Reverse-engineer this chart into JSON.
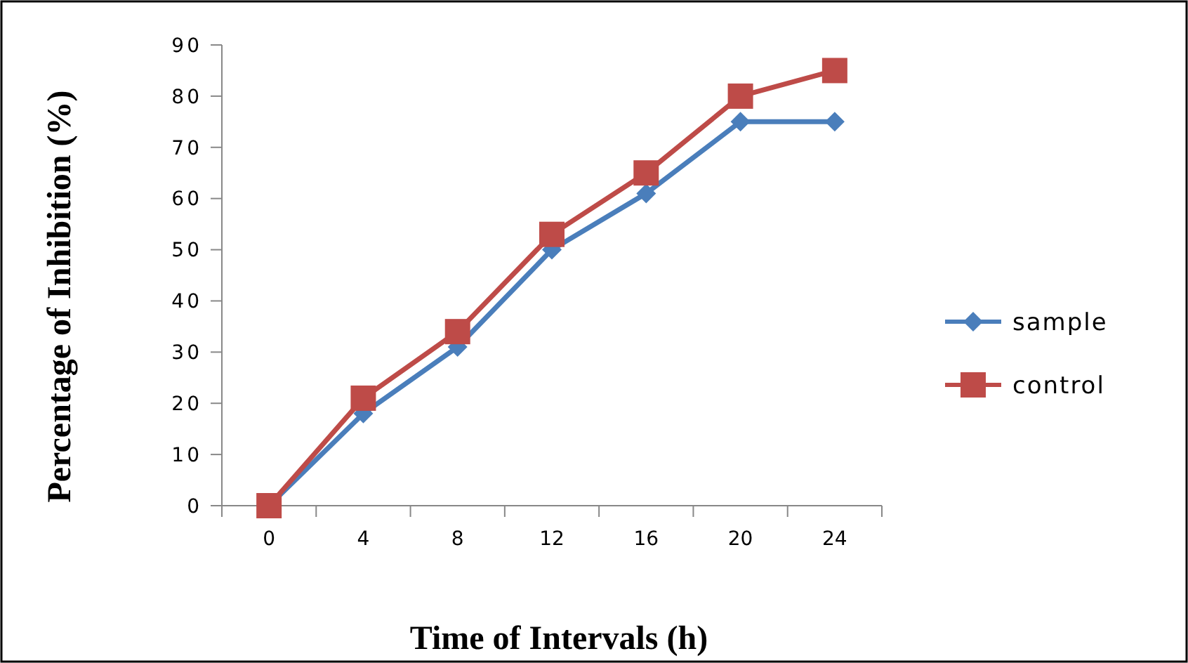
{
  "chart_data": {
    "type": "line",
    "xlabel": "Time of Intervals (h)",
    "ylabel": "Percentage of Inhibition (%)",
    "categories": [
      "0",
      "4",
      "8",
      "12",
      "16",
      "20",
      "24"
    ],
    "series": [
      {
        "name": "sample",
        "color": "#4a7ebb",
        "marker": "diamond",
        "values": [
          0,
          18,
          31,
          50,
          61,
          75,
          75
        ]
      },
      {
        "name": "control",
        "color": "#be4b48",
        "marker": "square",
        "values": [
          0,
          21,
          34,
          53,
          65,
          80,
          85
        ]
      }
    ],
    "ylim": [
      0,
      90
    ],
    "yticks": [
      0,
      10,
      20,
      30,
      40,
      50,
      60,
      70,
      80,
      90
    ],
    "legend": "right",
    "grid": false,
    "line_style": "solid"
  }
}
